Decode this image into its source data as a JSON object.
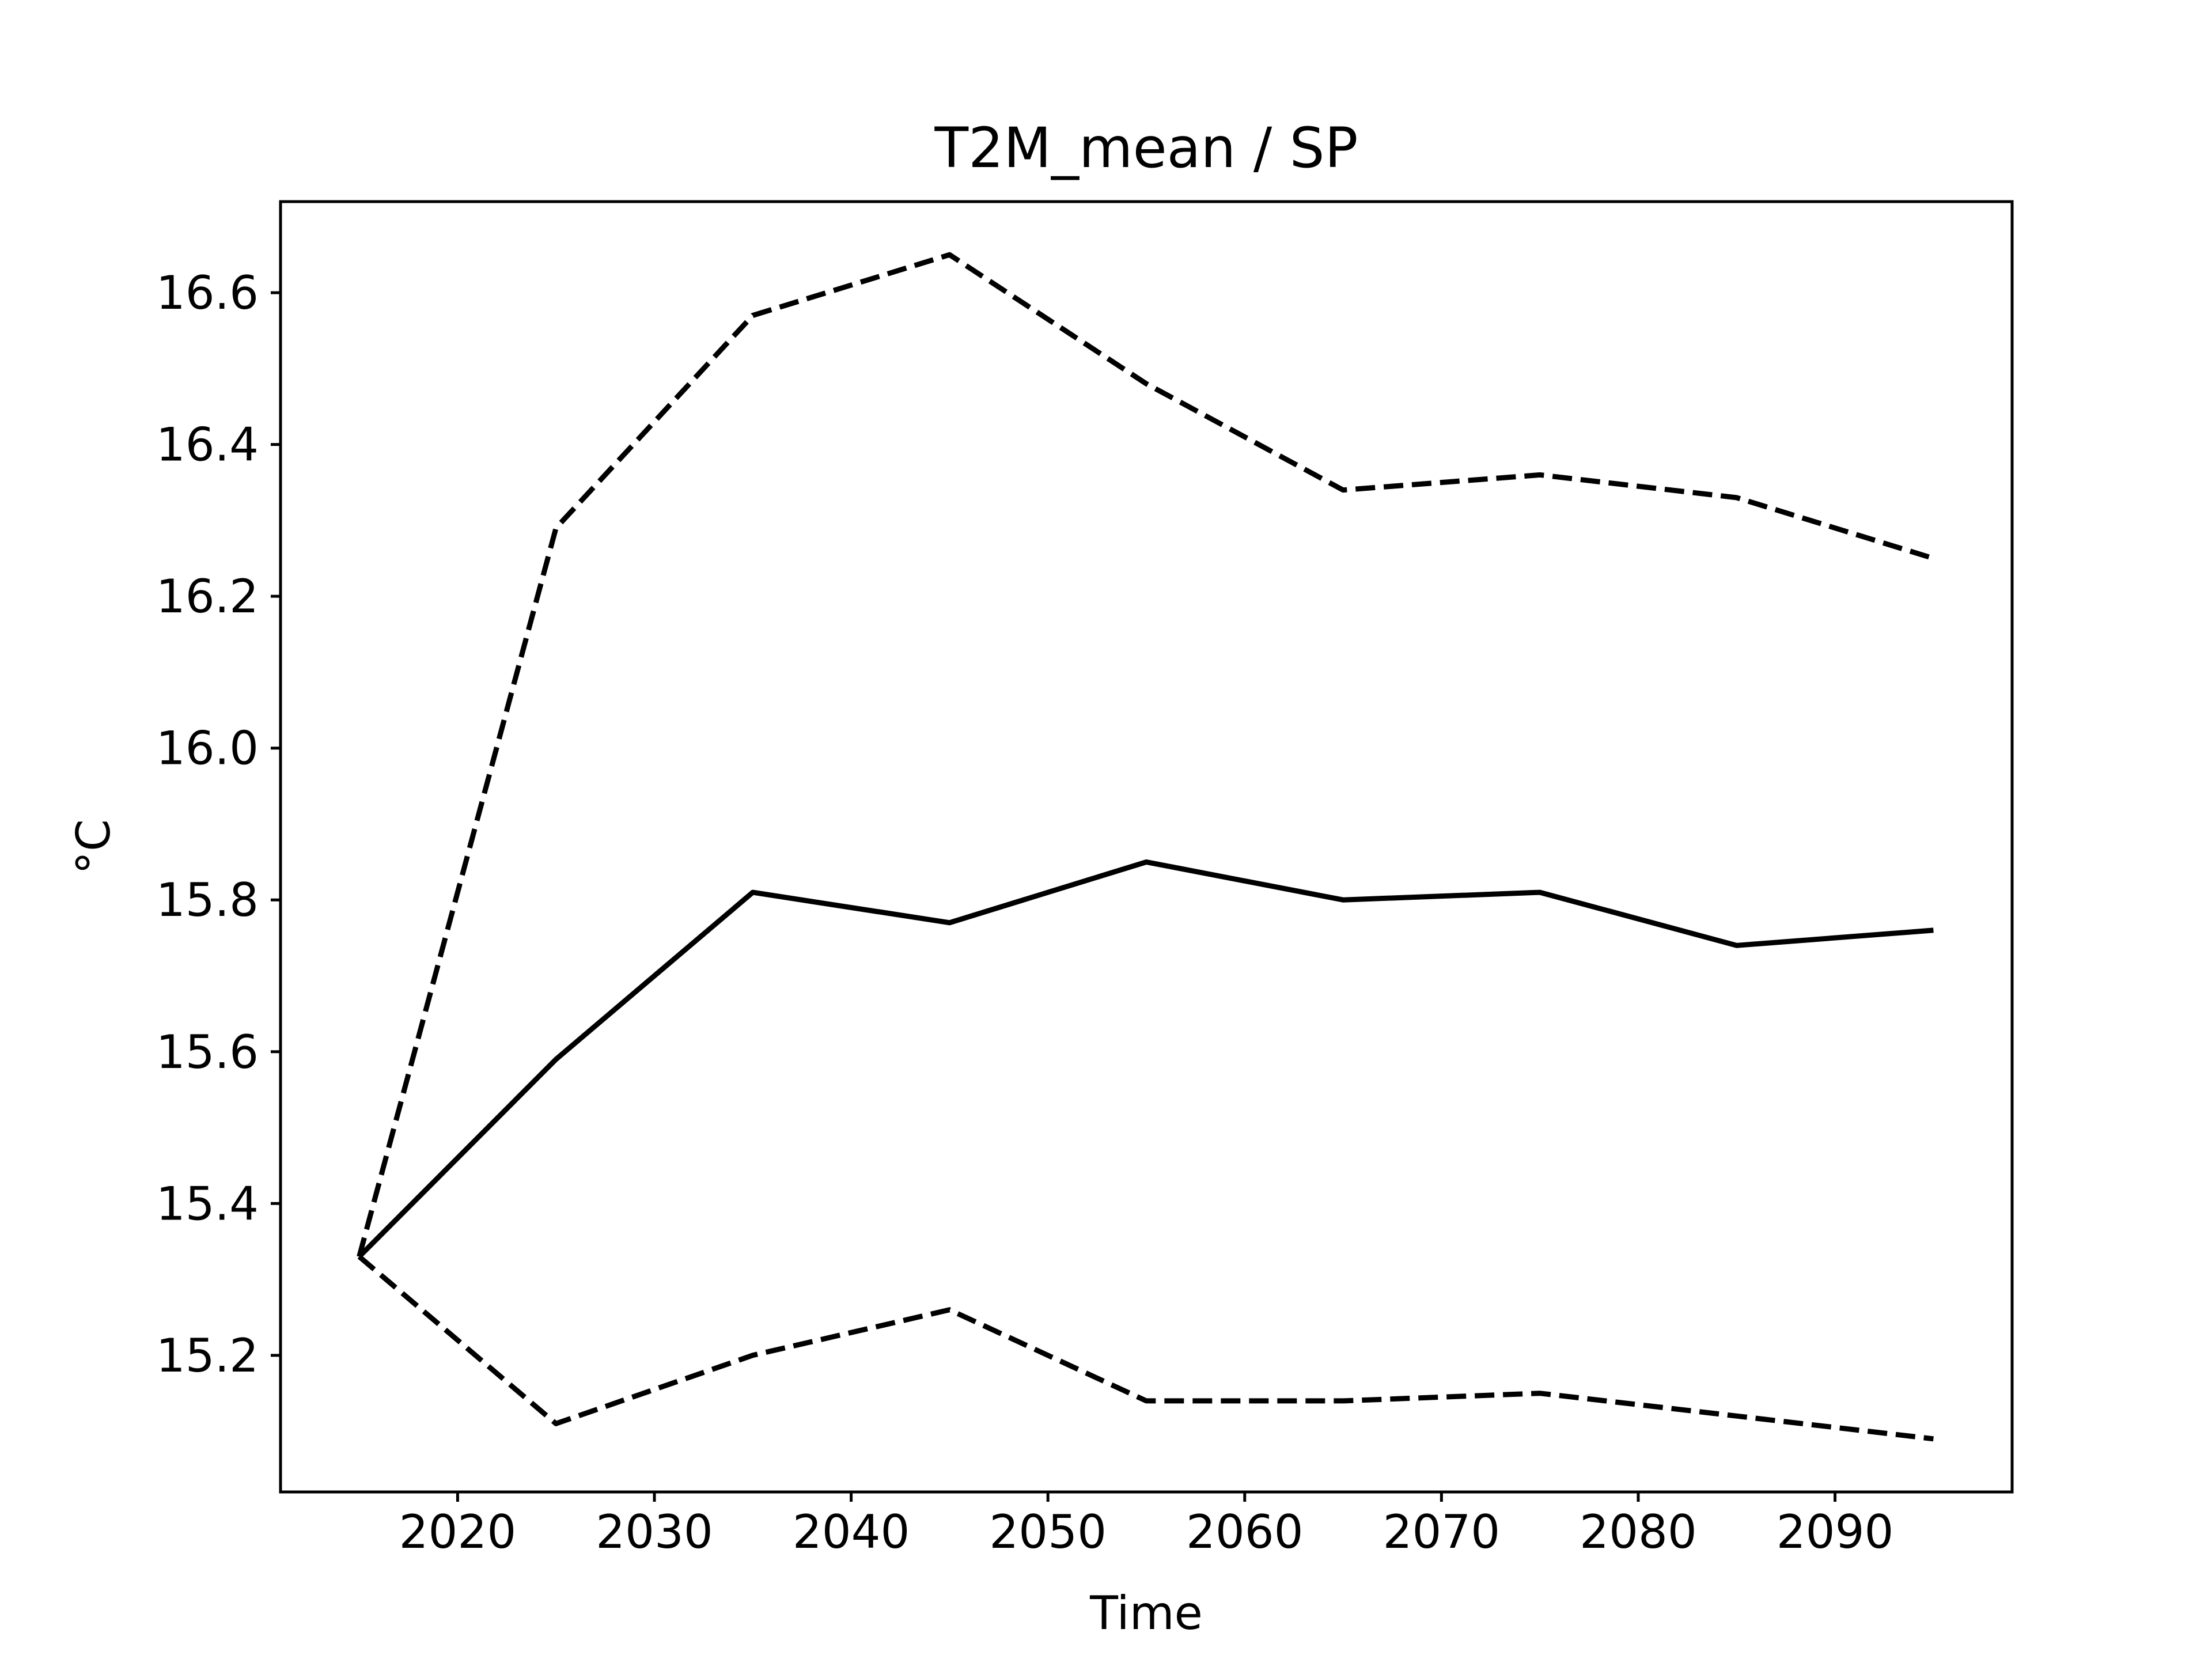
{
  "chart_data": {
    "type": "line",
    "title": "T2M_mean / SP",
    "xlabel": "Time",
    "ylabel": "°C",
    "xlim": [
      2011,
      2099
    ],
    "ylim": [
      15.02,
      16.72
    ],
    "xticks": [
      2020,
      2030,
      2040,
      2050,
      2060,
      2070,
      2080,
      2090
    ],
    "yticks": [
      15.2,
      15.4,
      15.6,
      15.8,
      16.0,
      16.2,
      16.4,
      16.6
    ],
    "grid": false,
    "legend": "none",
    "x": [
      2015,
      2025,
      2035,
      2045,
      2055,
      2065,
      2075,
      2085,
      2095
    ],
    "series": [
      {
        "style": "solid",
        "color": "#000000",
        "values": [
          15.33,
          15.59,
          15.81,
          15.77,
          15.85,
          15.8,
          15.81,
          15.74,
          15.76
        ]
      },
      {
        "style": "dashed",
        "color": "#000000",
        "values": [
          15.33,
          16.29,
          16.57,
          16.65,
          16.48,
          16.34,
          16.36,
          16.33,
          16.25
        ]
      },
      {
        "style": "dashed",
        "color": "#000000",
        "values": [
          15.33,
          15.11,
          15.2,
          15.26,
          15.14,
          15.14,
          15.15,
          15.12,
          15.09
        ]
      }
    ]
  }
}
